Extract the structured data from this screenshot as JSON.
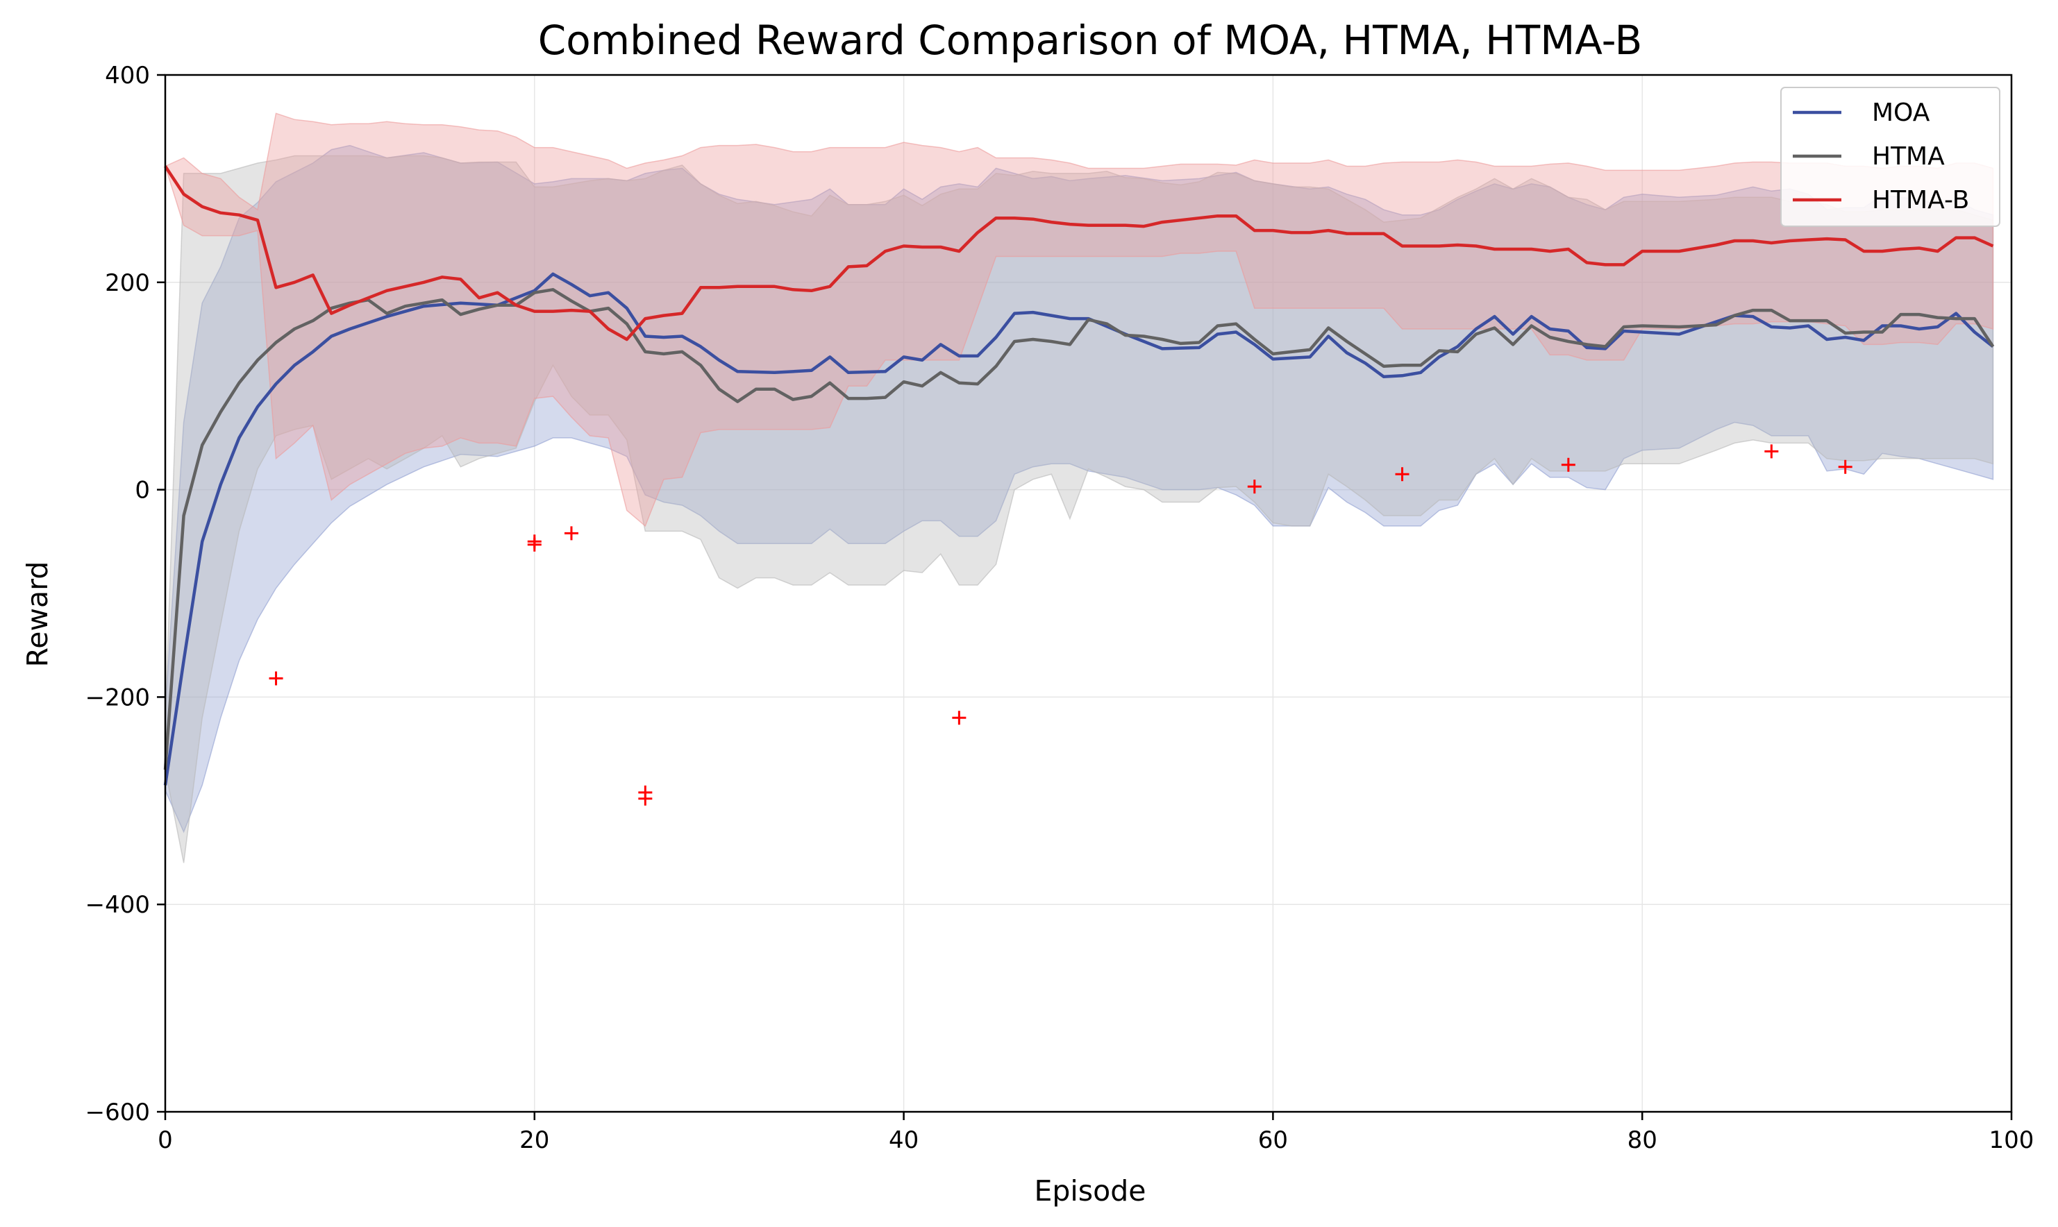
{
  "chart_data": {
    "type": "line",
    "title": "Combined Reward Comparison of MOA, HTMA, HTMA-B",
    "xlabel": "Episode",
    "ylabel": "Reward",
    "xlim": [
      0,
      100
    ],
    "ylim": [
      -600,
      400
    ],
    "xticks": [
      0,
      20,
      40,
      60,
      80,
      100
    ],
    "yticks": [
      -600,
      -400,
      -200,
      0,
      200,
      400
    ],
    "ytick_labels": [
      "−600",
      "−400",
      "−200",
      "0",
      "200",
      "400"
    ],
    "grid": true,
    "legend_position": "top-right",
    "series": [
      {
        "name": "MOA",
        "color": "#3b4fa0",
        "band_color": "#8f9fd0",
        "x": [
          0,
          1,
          2,
          3,
          4,
          5,
          6,
          7,
          8,
          9,
          10,
          12,
          14,
          16,
          18,
          20,
          21,
          22,
          23,
          24,
          25,
          26,
          27,
          28,
          29,
          30,
          31,
          33,
          35,
          36,
          37,
          39,
          40,
          41,
          42,
          43,
          44,
          45,
          46,
          47,
          48,
          49,
          50,
          52,
          54,
          56,
          57,
          58,
          59,
          60,
          62,
          63,
          64,
          65,
          66,
          67,
          68,
          69,
          70,
          71,
          72,
          73,
          74,
          75,
          76,
          77,
          78,
          79,
          80,
          82,
          84,
          85,
          86,
          87,
          88,
          89,
          90,
          91,
          92,
          93,
          94,
          95,
          96,
          97,
          98,
          99
        ],
        "mean": [
          -285,
          -165,
          -50,
          5,
          50,
          80,
          102,
          120,
          133,
          148,
          155,
          167,
          177,
          180,
          178,
          192,
          208,
          198,
          187,
          190,
          175,
          148,
          147,
          148,
          138,
          125,
          114,
          113,
          115,
          128,
          113,
          114,
          128,
          125,
          140,
          129,
          129,
          147,
          170,
          171,
          168,
          165,
          165,
          150,
          136,
          137,
          150,
          152,
          140,
          126,
          128,
          148,
          132,
          122,
          109,
          110,
          113,
          128,
          138,
          155,
          167,
          150,
          167,
          155,
          153,
          137,
          136,
          153,
          152,
          150,
          162,
          168,
          167,
          157,
          156,
          158,
          145,
          147,
          144,
          158,
          158,
          155,
          157,
          170,
          152,
          138
        ],
        "upper": [
          -215,
          65,
          180,
          215,
          262,
          277,
          297,
          306,
          315,
          328,
          332,
          320,
          325,
          315,
          316,
          295,
          297,
          300,
          300,
          300,
          298,
          305,
          308,
          310,
          295,
          285,
          280,
          275,
          280,
          290,
          275,
          275,
          290,
          280,
          292,
          295,
          292,
          310,
          305,
          300,
          302,
          298,
          300,
          303,
          298,
          300,
          303,
          306,
          298,
          295,
          290,
          292,
          285,
          280,
          270,
          265,
          265,
          270,
          280,
          288,
          295,
          290,
          295,
          292,
          282,
          275,
          270,
          282,
          285,
          282,
          284,
          288,
          292,
          288,
          290,
          285,
          270,
          272,
          272,
          284,
          282,
          280,
          275,
          280,
          270,
          265
        ],
        "lower": [
          -290,
          -330,
          -285,
          -220,
          -165,
          -125,
          -95,
          -72,
          -52,
          -32,
          -16,
          5,
          22,
          34,
          32,
          42,
          50,
          50,
          45,
          40,
          32,
          -5,
          -12,
          -15,
          -25,
          -40,
          -52,
          -52,
          -52,
          -38,
          -52,
          -52,
          -40,
          -30,
          -30,
          -45,
          -45,
          -30,
          15,
          22,
          25,
          25,
          18,
          12,
          0,
          0,
          2,
          -5,
          -15,
          -35,
          -35,
          2,
          -12,
          -22,
          -35,
          -35,
          -35,
          -20,
          -15,
          15,
          25,
          5,
          25,
          12,
          12,
          2,
          0,
          30,
          38,
          40,
          58,
          65,
          62,
          52,
          52,
          52,
          18,
          20,
          15,
          35,
          32,
          30,
          25,
          20,
          15,
          10
        ]
      },
      {
        "name": "HTMA",
        "color": "#626262",
        "band_color": "#b8b8b8",
        "x": [
          0,
          1,
          2,
          3,
          4,
          5,
          6,
          7,
          8,
          9,
          10,
          11,
          12,
          13,
          14,
          15,
          16,
          17,
          18,
          19,
          20,
          21,
          22,
          23,
          24,
          25,
          26,
          27,
          28,
          29,
          30,
          31,
          32,
          33,
          34,
          35,
          36,
          37,
          38,
          39,
          40,
          41,
          42,
          43,
          44,
          45,
          46,
          47,
          48,
          49,
          50,
          51,
          52,
          53,
          54,
          55,
          56,
          57,
          58,
          59,
          60,
          61,
          62,
          63,
          64,
          65,
          66,
          67,
          68,
          69,
          70,
          71,
          72,
          73,
          74,
          75,
          76,
          77,
          78,
          79,
          80,
          82,
          84,
          85,
          86,
          87,
          88,
          89,
          90,
          91,
          92,
          93,
          94,
          95,
          96,
          97,
          98,
          99
        ],
        "mean": [
          -270,
          -25,
          43,
          75,
          103,
          125,
          142,
          155,
          163,
          175,
          180,
          183,
          170,
          177,
          180,
          183,
          169,
          174,
          178,
          178,
          190,
          193,
          182,
          172,
          175,
          160,
          133,
          131,
          133,
          120,
          97,
          85,
          97,
          97,
          87,
          90,
          103,
          88,
          88,
          89,
          104,
          100,
          113,
          103,
          102,
          119,
          143,
          145,
          143,
          140,
          164,
          160,
          149,
          148,
          145,
          141,
          142,
          158,
          160,
          145,
          131,
          133,
          135,
          156,
          143,
          131,
          119,
          120,
          120,
          134,
          133,
          150,
          156,
          140,
          158,
          147,
          143,
          140,
          138,
          157,
          158,
          157,
          159,
          168,
          173,
          173,
          163,
          163,
          163,
          151,
          152,
          152,
          169,
          169,
          166,
          165,
          165,
          138
        ],
        "upper": [
          -225,
          305,
          305,
          305,
          310,
          315,
          318,
          322,
          322,
          322,
          322,
          322,
          320,
          322,
          322,
          320,
          315,
          316,
          316,
          316,
          292,
          292,
          295,
          298,
          300,
          298,
          300,
          308,
          313,
          295,
          284,
          276,
          278,
          274,
          268,
          264,
          284,
          275,
          275,
          278,
          284,
          274,
          285,
          290,
          290,
          305,
          303,
          307,
          305,
          305,
          305,
          307,
          301,
          300,
          296,
          294,
          297,
          306,
          305,
          298,
          295,
          292,
          292,
          290,
          280,
          270,
          258,
          260,
          262,
          272,
          282,
          290,
          300,
          290,
          300,
          292,
          282,
          280,
          270,
          278,
          278,
          278,
          280,
          282,
          282,
          282,
          278,
          278,
          275,
          268,
          268,
          270,
          270,
          270,
          270,
          270,
          265,
          260
        ],
        "lower": [
          -270,
          -360,
          -220,
          -130,
          -40,
          20,
          52,
          58,
          62,
          10,
          20,
          30,
          20,
          30,
          40,
          52,
          22,
          30,
          35,
          40,
          85,
          120,
          90,
          72,
          72,
          48,
          -40,
          -40,
          -40,
          -48,
          -85,
          -95,
          -85,
          -85,
          -92,
          -92,
          -80,
          -92,
          -92,
          -92,
          -78,
          -80,
          -62,
          -92,
          -92,
          -72,
          0,
          10,
          15,
          -28,
          20,
          12,
          3,
          0,
          -12,
          -12,
          -12,
          2,
          3,
          -12,
          -32,
          -35,
          -35,
          15,
          3,
          -10,
          -25,
          -25,
          -25,
          -10,
          -10,
          15,
          30,
          5,
          30,
          18,
          18,
          18,
          18,
          25,
          25,
          25,
          38,
          45,
          48,
          45,
          45,
          45,
          30,
          28,
          28,
          30,
          30,
          30,
          30,
          30,
          30,
          25
        ]
      },
      {
        "name": "HTMA-B",
        "color": "#d62728",
        "band_color": "#ec9a9a",
        "x": [
          0,
          1,
          2,
          3,
          4,
          5,
          6,
          7,
          8,
          9,
          10,
          11,
          12,
          13,
          14,
          15,
          16,
          17,
          18,
          19,
          20,
          21,
          22,
          23,
          24,
          25,
          26,
          27,
          28,
          29,
          30,
          31,
          32,
          33,
          34,
          35,
          36,
          37,
          38,
          39,
          40,
          41,
          42,
          43,
          44,
          45,
          46,
          47,
          48,
          49,
          50,
          51,
          52,
          53,
          54,
          55,
          56,
          57,
          58,
          59,
          60,
          61,
          62,
          63,
          64,
          65,
          66,
          67,
          68,
          69,
          70,
          71,
          72,
          73,
          74,
          75,
          76,
          77,
          78,
          79,
          80,
          82,
          84,
          85,
          86,
          87,
          88,
          89,
          90,
          91,
          92,
          93,
          94,
          95,
          96,
          97,
          98,
          99
        ],
        "mean": [
          312,
          285,
          273,
          267,
          265,
          260,
          195,
          200,
          207,
          170,
          178,
          185,
          192,
          196,
          200,
          205,
          203,
          185,
          190,
          178,
          172,
          172,
          173,
          172,
          155,
          145,
          165,
          168,
          170,
          195,
          195,
          196,
          196,
          196,
          193,
          192,
          196,
          215,
          216,
          230,
          235,
          234,
          234,
          230,
          248,
          262,
          262,
          261,
          258,
          256,
          255,
          255,
          255,
          254,
          258,
          260,
          262,
          264,
          264,
          250,
          250,
          248,
          248,
          250,
          247,
          247,
          247,
          235,
          235,
          235,
          236,
          235,
          232,
          232,
          232,
          230,
          232,
          219,
          217,
          217,
          230,
          230,
          236,
          240,
          240,
          238,
          240,
          241,
          242,
          241,
          230,
          230,
          232,
          233,
          230,
          243,
          243,
          235
        ],
        "upper": [
          312,
          320,
          305,
          300,
          282,
          270,
          363,
          357,
          355,
          352,
          353,
          353,
          355,
          353,
          352,
          352,
          350,
          347,
          346,
          340,
          330,
          330,
          326,
          322,
          318,
          310,
          315,
          318,
          322,
          330,
          332,
          332,
          333,
          330,
          326,
          326,
          330,
          330,
          330,
          330,
          335,
          332,
          330,
          326,
          330,
          320,
          320,
          320,
          318,
          315,
          310,
          310,
          310,
          310,
          312,
          314,
          314,
          314,
          313,
          318,
          315,
          315,
          315,
          318,
          312,
          312,
          315,
          316,
          316,
          316,
          318,
          316,
          312,
          312,
          312,
          314,
          315,
          312,
          308,
          308,
          308,
          308,
          312,
          315,
          316,
          316,
          315,
          315,
          315,
          312,
          312,
          310,
          312,
          312,
          310,
          315,
          315,
          310
        ],
        "lower": [
          312,
          255,
          245,
          245,
          245,
          250,
          30,
          45,
          62,
          -10,
          5,
          15,
          25,
          35,
          40,
          42,
          50,
          45,
          45,
          42,
          88,
          90,
          70,
          52,
          50,
          -20,
          -35,
          10,
          12,
          55,
          58,
          58,
          58,
          58,
          58,
          58,
          60,
          100,
          100,
          125,
          125,
          125,
          125,
          125,
          175,
          225,
          225,
          225,
          225,
          225,
          225,
          225,
          225,
          225,
          225,
          228,
          228,
          230,
          230,
          175,
          175,
          175,
          175,
          175,
          175,
          175,
          175,
          155,
          155,
          155,
          155,
          155,
          155,
          155,
          155,
          130,
          130,
          125,
          125,
          125,
          155,
          155,
          158,
          160,
          160,
          162,
          162,
          162,
          160,
          158,
          140,
          140,
          142,
          142,
          140,
          160,
          160,
          155
        ]
      },
      {
        "name": "",
        "type": "scatter",
        "marker": "+",
        "color": "#ff0000",
        "x": [
          6,
          20,
          20,
          22,
          26,
          26,
          43,
          59,
          67,
          76,
          87,
          91
        ],
        "y": [
          -182,
          -50,
          -53,
          -42,
          -292,
          -298,
          -220,
          3,
          15,
          24,
          37,
          22
        ]
      }
    ]
  }
}
